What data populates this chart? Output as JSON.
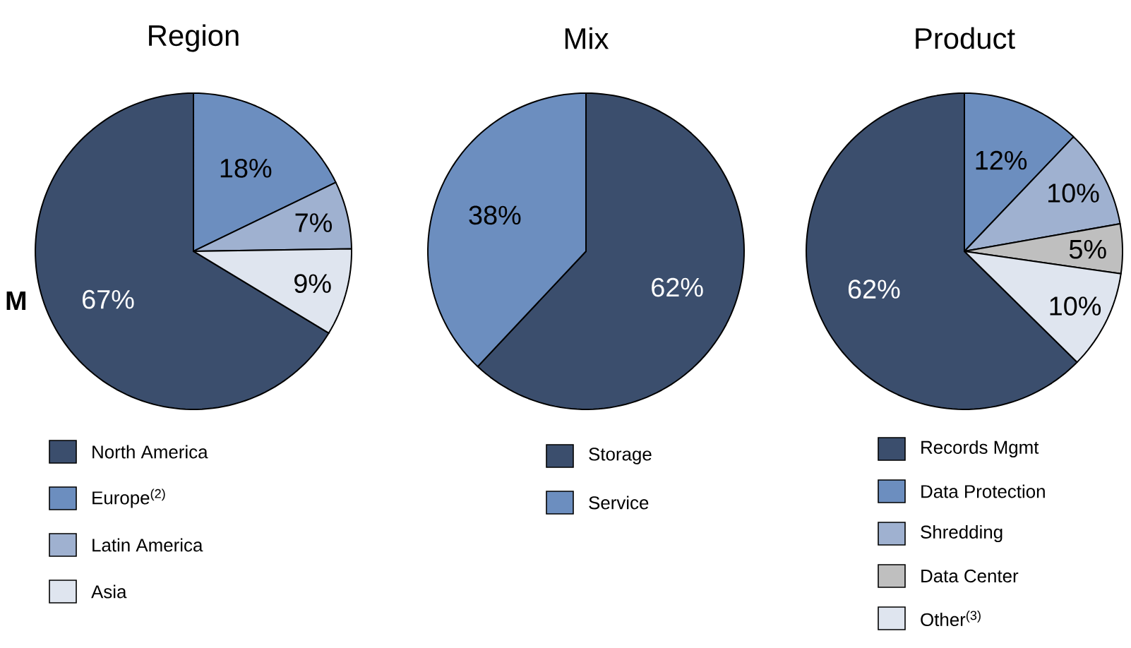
{
  "chart_data": [
    {
      "type": "pie",
      "title": "Region",
      "categories": [
        "North America",
        "Europe$^{(2)}$",
        "Latin America",
        "Asia"
      ],
      "values": [
        67,
        18,
        7,
        9
      ],
      "value_labels": [
        "67%",
        "18%",
        "7%",
        "9%"
      ],
      "colors": [
        "#3b4e6d",
        "#6c8ebf",
        "#9fb1d0",
        "#dfe5ef"
      ],
      "legend": "bottom",
      "annotations": [
        "M"
      ]
    },
    {
      "type": "pie",
      "title": "Mix",
      "categories": [
        "Storage",
        "Service"
      ],
      "values": [
        62,
        38
      ],
      "value_labels": [
        "62%",
        "38%"
      ],
      "colors": [
        "#3b4e6d",
        "#6c8ebf"
      ],
      "legend": "bottom"
    },
    {
      "type": "pie",
      "title": "Product",
      "categories": [
        "Records Mgmt",
        "Data Protection",
        "Shredding",
        "Data Center",
        "Other$^{(3)}$"
      ],
      "values": [
        62,
        12,
        10,
        5,
        10
      ],
      "value_labels": [
        "62%",
        "12%",
        "10%",
        "5%",
        "10%"
      ],
      "colors": [
        "#3b4e6d",
        "#6c8ebf",
        "#9fb1d0",
        "#bfbfbf",
        "#dfe5ef"
      ],
      "legend": "bottom"
    }
  ]
}
